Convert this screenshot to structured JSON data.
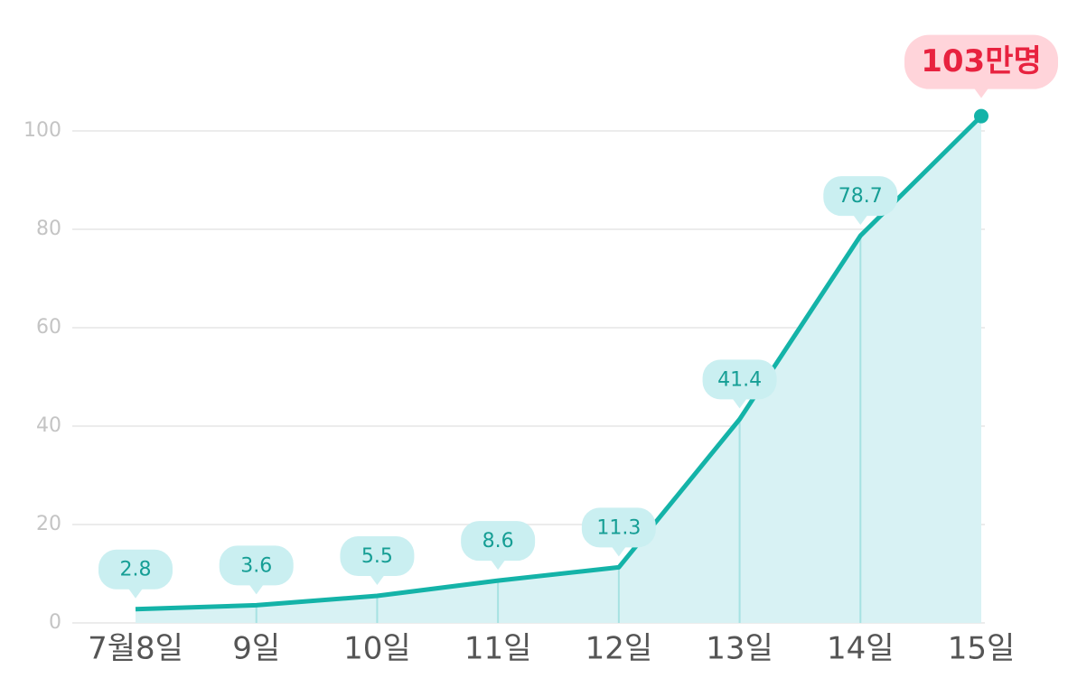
{
  "chart_data": {
    "type": "area",
    "categories": [
      "7월8일",
      "9일",
      "10일",
      "11일",
      "12일",
      "13일",
      "14일",
      "15일"
    ],
    "values": [
      2.8,
      3.6,
      5.5,
      8.6,
      11.3,
      41.4,
      78.7,
      103
    ],
    "value_labels": [
      "2.8",
      "3.6",
      "5.5",
      "8.6",
      "11.3",
      "41.4",
      "78.7",
      "103만명"
    ],
    "color": "#14b3a8",
    "ylim": [
      0,
      100
    ],
    "yticks": [
      0,
      20,
      40,
      60,
      80,
      100
    ],
    "grid": true
  }
}
